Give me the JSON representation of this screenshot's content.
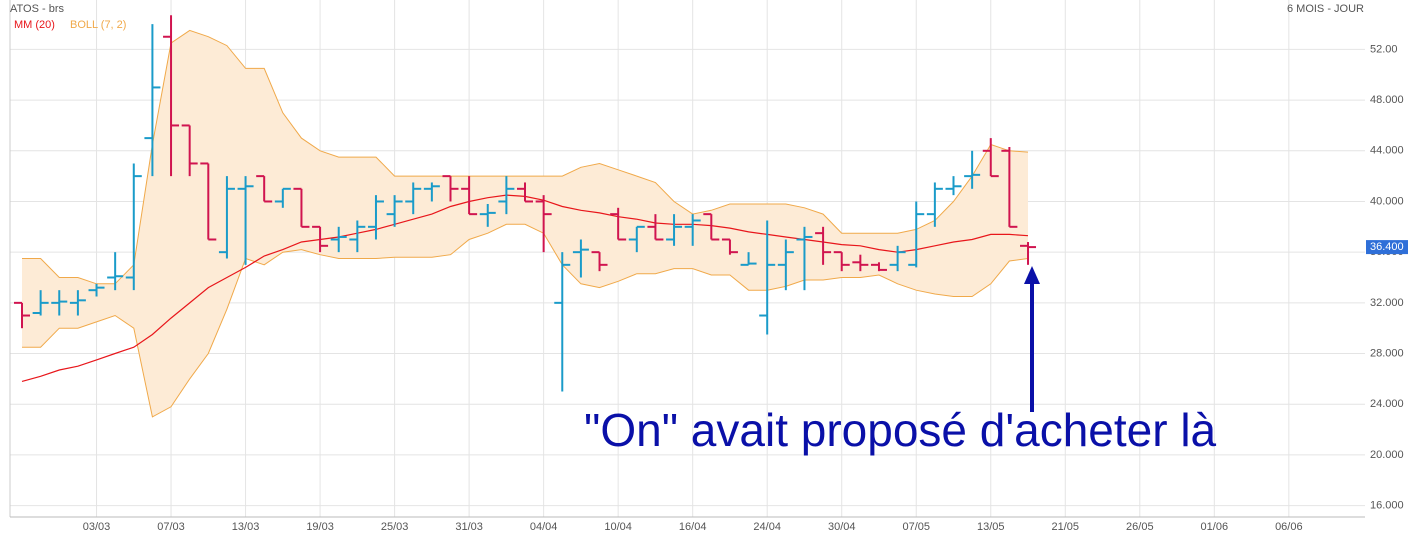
{
  "chart_data": {
    "type": "ohlc",
    "title": "ATOS - brs",
    "period": "6 MOIS - JOUR",
    "up_color": "#1a9bc9",
    "down_color": "#d0144f",
    "grid": true,
    "categories": [
      null,
      null,
      null,
      null,
      "03/03",
      null,
      null,
      null,
      "07/03",
      null,
      null,
      null,
      "13/03",
      null,
      null,
      null,
      "19/03",
      null,
      null,
      null,
      "25/03",
      null,
      null,
      null,
      "31/03",
      null,
      null,
      null,
      "04/04",
      null,
      null,
      null,
      "10/04",
      null,
      null,
      null,
      "16/04",
      null,
      null,
      null,
      "24/04",
      null,
      null,
      null,
      "30/04",
      null,
      null,
      null,
      "07/05",
      null,
      null,
      null,
      "13/05",
      null,
      null,
      null,
      "21/05",
      null,
      null,
      null,
      "26/05",
      null,
      null,
      null,
      "01/06",
      null,
      null,
      null,
      "06/06"
    ],
    "open": [
      32,
      31.2,
      32,
      32,
      33,
      34,
      34,
      45,
      53,
      46,
      43,
      36,
      41,
      42,
      40,
      41,
      38,
      37,
      37,
      38,
      39,
      40,
      41,
      42,
      41,
      39,
      40,
      41,
      40,
      32,
      36,
      36,
      39,
      37,
      38,
      37,
      38,
      39,
      37,
      35,
      31,
      35,
      37,
      37.5,
      36,
      35.2,
      35,
      35,
      35,
      39,
      41,
      42,
      44,
      44,
      36.5,
      null,
      null,
      null,
      null,
      null,
      null,
      null,
      null,
      null,
      null,
      null,
      null,
      null,
      null
    ],
    "high": [
      32,
      33,
      33,
      33,
      33.5,
      36,
      43,
      54,
      54.7,
      46,
      43,
      42,
      42,
      42,
      41,
      41,
      38,
      38,
      38.5,
      40.5,
      40.5,
      41.5,
      41.5,
      42,
      42,
      39.8,
      42,
      41.5,
      40.5,
      36,
      37,
      36,
      39.5,
      38,
      39,
      39,
      39,
      39,
      37,
      36,
      38.5,
      37,
      38,
      38,
      36,
      35.8,
      35.2,
      36.5,
      40,
      41.5,
      42,
      44,
      45,
      44.3,
      36.8,
      null,
      null,
      null,
      null,
      null,
      null,
      null,
      null,
      null,
      null,
      null,
      null,
      null,
      null
    ],
    "low": [
      30,
      31,
      31,
      31,
      32.5,
      33,
      33,
      42,
      42,
      42,
      37,
      35.5,
      35,
      40,
      39.5,
      38,
      36,
      36,
      36,
      37,
      38,
      39,
      40,
      40,
      39,
      38,
      39,
      40,
      36,
      25,
      34,
      34.5,
      37,
      36,
      37,
      36.5,
      36.5,
      37,
      35.8,
      35,
      29.5,
      33,
      33,
      35,
      34.5,
      34.5,
      34.5,
      34.5,
      34.8,
      38,
      40.5,
      41,
      42,
      38,
      35,
      null,
      null,
      null,
      null,
      null,
      null,
      null,
      null,
      null,
      null,
      null,
      null,
      null,
      null
    ],
    "close": [
      31,
      32,
      32.1,
      32.2,
      33.2,
      34.1,
      42,
      49,
      46,
      43,
      37,
      41,
      41.2,
      40,
      41,
      38,
      36.5,
      37.2,
      38,
      40,
      40,
      41,
      41.2,
      41,
      39,
      39.1,
      41,
      40,
      39,
      35,
      36.2,
      35,
      37,
      38,
      37,
      38,
      38.5,
      37,
      36,
      35.1,
      35,
      36,
      37.2,
      36,
      35,
      35,
      34.6,
      36,
      39,
      41,
      41.2,
      42.1,
      42,
      38,
      36.4,
      null,
      null,
      null,
      null,
      null,
      null,
      null,
      null,
      null,
      null,
      null,
      null,
      null,
      null
    ],
    "indicators": [
      {
        "name": "MM (20)",
        "color": "#e8161b",
        "values": [
          25.8,
          26.2,
          26.7,
          27,
          27.5,
          28,
          28.5,
          29.5,
          30.8,
          32,
          33.2,
          34,
          34.8,
          35.7,
          36.2,
          36.8,
          37,
          37.2,
          37.5,
          37.8,
          38.2,
          38.6,
          39,
          39.6,
          40,
          40.3,
          40.5,
          40.4,
          40.1,
          39.6,
          39.3,
          39.1,
          38.8,
          38.6,
          38.3,
          38.2,
          38.2,
          38.1,
          37.9,
          37.6,
          37.4,
          37.2,
          37,
          36.8,
          36.6,
          36.5,
          36.2,
          36,
          36.2,
          36.5,
          36.8,
          37,
          37.4,
          37.4,
          37.3,
          null,
          null,
          null,
          null,
          null,
          null,
          null,
          null,
          null,
          null,
          null,
          null,
          null,
          null
        ]
      },
      {
        "name": "BOLL (7, 2)",
        "color": "#f0a94a",
        "fill": "#fdebd6",
        "upper": [
          35.5,
          35.5,
          34,
          34,
          33.5,
          33.5,
          35,
          44.5,
          52.5,
          53.5,
          53,
          52.3,
          50.5,
          50.5,
          47,
          45,
          44,
          43.5,
          43.5,
          43.5,
          42,
          42,
          42,
          42,
          42,
          42,
          42,
          42,
          42,
          42,
          42.7,
          43,
          42.5,
          42,
          41.5,
          40,
          39,
          39.3,
          39.8,
          39.8,
          39.8,
          39.8,
          39.5,
          39,
          37.5,
          37.5,
          37.5,
          37.5,
          37.8,
          38.5,
          40,
          42,
          44.5,
          44,
          43.9,
          null,
          null,
          null,
          null,
          null,
          null,
          null,
          null,
          null,
          null,
          null,
          null,
          null,
          null
        ],
        "lower": [
          28.5,
          28.5,
          30,
          30,
          30.5,
          31,
          30,
          23,
          23.8,
          26,
          28,
          31.5,
          35.5,
          35,
          36,
          36.2,
          35.8,
          35.5,
          35.5,
          35.5,
          35.6,
          35.6,
          35.6,
          35.8,
          37,
          37.5,
          38.2,
          38.2,
          37.5,
          35,
          33.5,
          33.2,
          33.7,
          34.3,
          34.3,
          34.7,
          34.7,
          34.2,
          34.2,
          33,
          33,
          33.3,
          33.8,
          33.8,
          34,
          34,
          34.2,
          33.5,
          33,
          32.7,
          32.5,
          32.5,
          33.5,
          35.3,
          35.5,
          null,
          null,
          null,
          null,
          null,
          null,
          null,
          null,
          null,
          null,
          null,
          null,
          null,
          null
        ]
      }
    ],
    "ylim": [
      15.1,
      55.9
    ],
    "yticks": [
      {
        "value": 16,
        "label": "16.000"
      },
      {
        "value": 20,
        "label": "20.000"
      },
      {
        "value": 24,
        "label": "24.000"
      },
      {
        "value": 28,
        "label": "28.000"
      },
      {
        "value": 32,
        "label": "32.000"
      },
      {
        "value": 36,
        "label": "36.000"
      },
      {
        "value": 40,
        "label": "40.000"
      },
      {
        "value": 44,
        "label": "44.000"
      },
      {
        "value": 48,
        "label": "48.000"
      },
      {
        "value": 52,
        "label": "52.00"
      }
    ],
    "last_price": {
      "value": 36.4,
      "label": "36.400"
    },
    "annotation": "\"On\" avait proposé d'acheter là"
  }
}
